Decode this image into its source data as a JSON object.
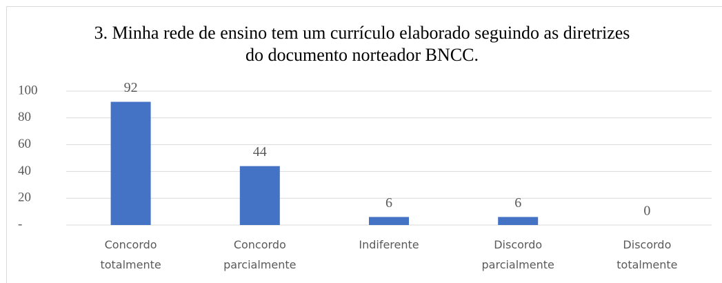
{
  "chart_data": {
    "type": "bar",
    "title": "3. Minha rede de ensino tem um currículo elaborado seguindo as diretrizes do documento norteador BNCC.",
    "categories": [
      "Concordo totalmente",
      "Concordo parcialmente",
      "Indiferente",
      "Discordo parcialmente",
      "Discordo totalmente"
    ],
    "values": [
      92,
      44,
      6,
      6,
      0
    ],
    "color": "#4472c4",
    "ylim": [
      0,
      100
    ],
    "yticks": [
      {
        "value": 0,
        "label": "-"
      },
      20,
      40,
      60,
      80,
      100
    ],
    "grid": true
  }
}
